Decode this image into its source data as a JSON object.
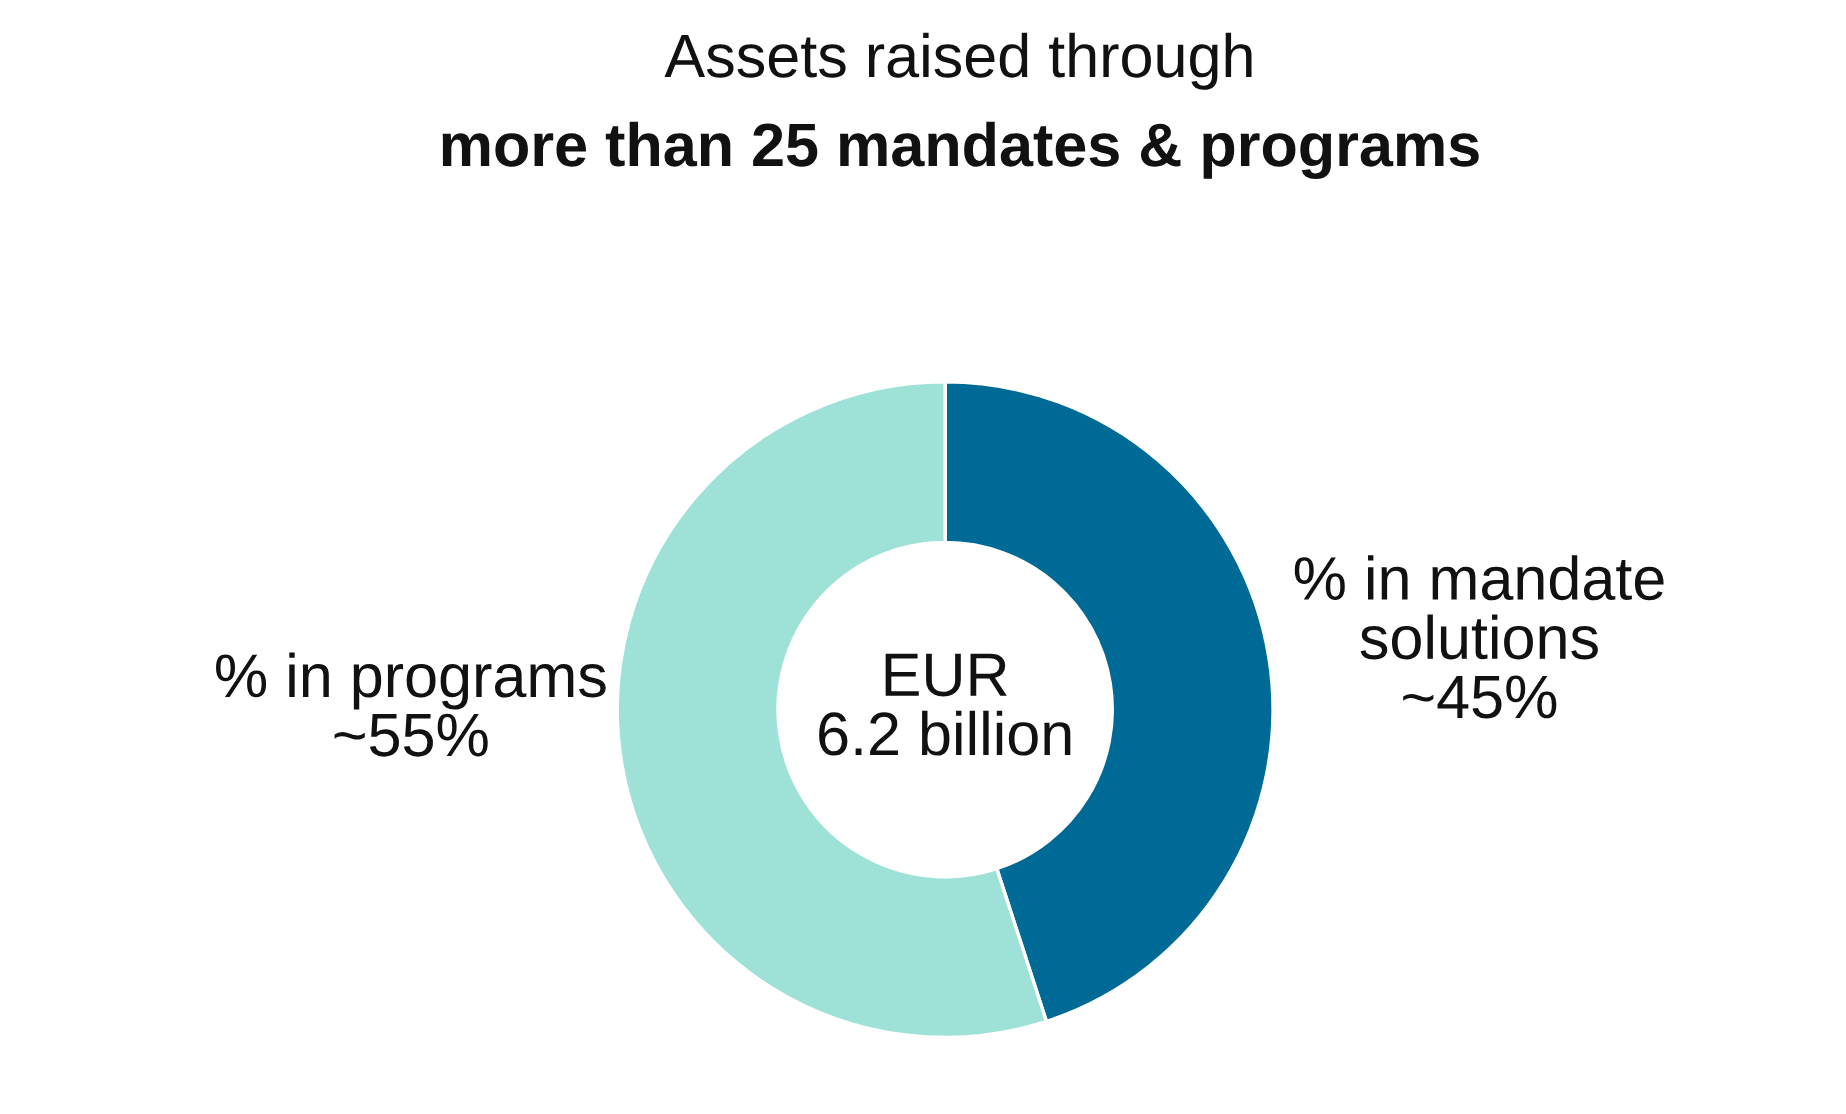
{
  "chart_data": {
    "type": "donut",
    "title": "Assets raised through",
    "subtitle": "more than 25 mandates & programs",
    "categories": [
      "% in mandate\nsolutions",
      "% in programs"
    ],
    "values": [
      45,
      55
    ],
    "value_labels": [
      "~45%",
      "~55%"
    ],
    "colors": [
      "#006a96",
      "#9ee1d6"
    ],
    "annotations": [
      "EUR\n6.2 billion"
    ],
    "legend": false
  }
}
